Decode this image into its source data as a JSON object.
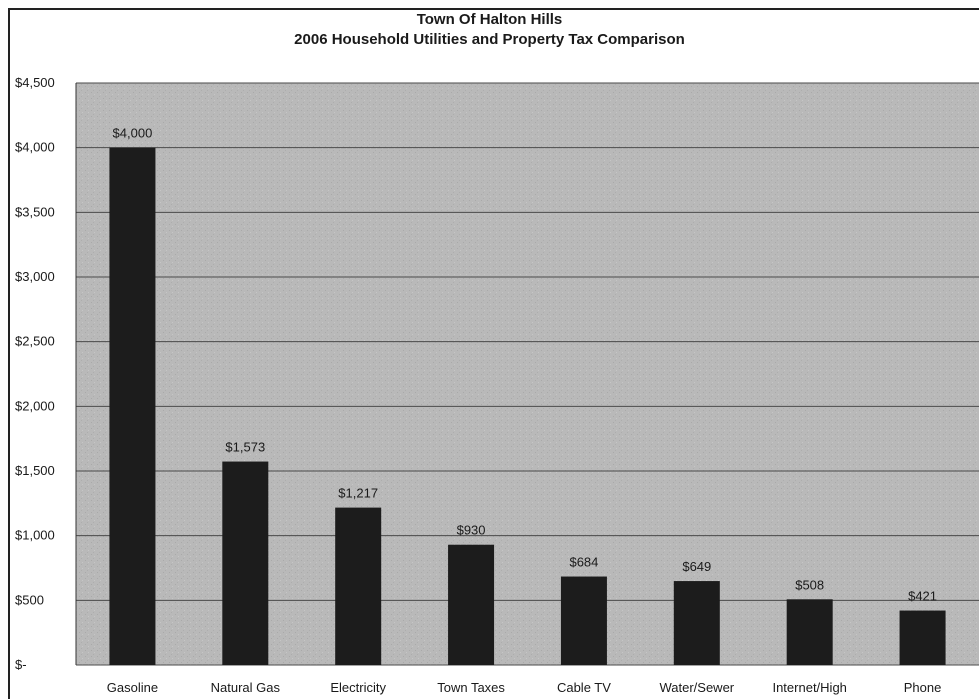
{
  "chart_data": {
    "type": "bar",
    "title": "Town Of Halton Hills",
    "subtitle": "2006 Household Utilities and Property Tax Comparison",
    "categories": [
      "Gasoline",
      "Natural Gas",
      "Electricity",
      "Town Taxes",
      "Cable TV",
      "Water/Sewer",
      "Internet/High",
      "Phone"
    ],
    "values": [
      4000,
      1573,
      1217,
      930,
      684,
      649,
      508,
      421
    ],
    "data_labels": [
      "$4,000",
      "$1,573",
      "$1,217",
      "$930",
      "$684",
      "$649",
      "$508",
      "$421"
    ],
    "ylim": [
      0,
      4500
    ],
    "yticks": [
      0,
      500,
      1000,
      1500,
      2000,
      2500,
      3000,
      3500,
      4000,
      4500
    ],
    "ytick_labels": [
      "$-",
      "$500",
      "$1,000",
      "$1,500",
      "$2,000",
      "$2,500",
      "$3,000",
      "$3,500",
      "$4,000",
      "$4,500"
    ],
    "xlabel": "",
    "ylabel": "",
    "grid": true,
    "legend": "none",
    "colors": {
      "bar": "#1c1c1c",
      "plot_background": "#b9b9b9",
      "gridline": "#4a4a4a"
    }
  }
}
